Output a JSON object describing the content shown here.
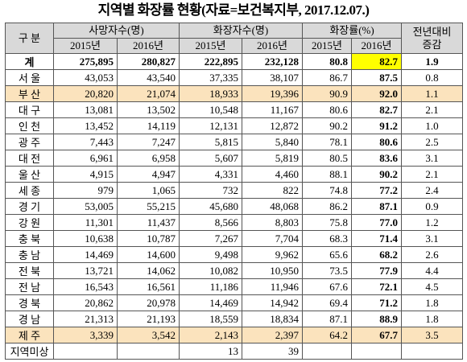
{
  "title": "지역별 화장률 현황(자료=보건복지부, 2017.12.07.)",
  "table": {
    "header": {
      "region": "구 분",
      "groups": [
        "사망자수(명)",
        "화장자수(명)",
        "화장률(%)"
      ],
      "years": [
        "2015년",
        "2016년"
      ],
      "change": [
        "전년대비",
        "증감"
      ]
    },
    "rows": [
      [
        "계",
        "275,895",
        "280,827",
        "222,895",
        "232,128",
        "80.8",
        "82.7",
        "1.9"
      ],
      [
        "서 울",
        "43,053",
        "43,540",
        "37,335",
        "38,107",
        "86.7",
        "87.5",
        "0.8"
      ],
      [
        "부 산",
        "20,820",
        "21,074",
        "18,933",
        "19,396",
        "90.9",
        "92.0",
        "1.1"
      ],
      [
        "대 구",
        "13,081",
        "13,502",
        "10,548",
        "11,167",
        "80.6",
        "82.7",
        "2.1"
      ],
      [
        "인 천",
        "13,452",
        "14,119",
        "12,131",
        "12,872",
        "90.2",
        "91.2",
        "1.0"
      ],
      [
        "광 주",
        "7,443",
        "7,247",
        "5,815",
        "5,840",
        "78.1",
        "80.6",
        "2.5"
      ],
      [
        "대 전",
        "6,961",
        "6,958",
        "5,607",
        "5,819",
        "80.5",
        "83.6",
        "3.1"
      ],
      [
        "울 산",
        "4,915",
        "4,947",
        "4,331",
        "4,460",
        "88.1",
        "90.2",
        "2.1"
      ],
      [
        "세 종",
        "979",
        "1,065",
        "732",
        "822",
        "74.8",
        "77.2",
        "2.4"
      ],
      [
        "경 기",
        "53,005",
        "55,215",
        "45,680",
        "48,068",
        "86.2",
        "87.1",
        "0.9"
      ],
      [
        "강 원",
        "11,301",
        "11,437",
        "8,566",
        "8,803",
        "75.8",
        "77.0",
        "1.2"
      ],
      [
        "충 북",
        "10,638",
        "10,787",
        "7,267",
        "7,704",
        "68.3",
        "71.4",
        "3.1"
      ],
      [
        "충 남",
        "14,469",
        "14,600",
        "9,498",
        "9,962",
        "65.6",
        "68.2",
        "2.6"
      ],
      [
        "전 북",
        "13,721",
        "14,062",
        "10,082",
        "10,950",
        "73.5",
        "77.9",
        "4.4"
      ],
      [
        "전 남",
        "16,543",
        "16,561",
        "11,186",
        "11,946",
        "67.6",
        "72.1",
        "4.5"
      ],
      [
        "경 북",
        "20,862",
        "20,978",
        "14,469",
        "14,942",
        "69.4",
        "71.2",
        "1.8"
      ],
      [
        "경 남",
        "21,313",
        "21,193",
        "18,559",
        "18,834",
        "87.1",
        "88.9",
        "1.8"
      ],
      [
        "제 주",
        "3,339",
        "3,542",
        "2,143",
        "2,397",
        "64.2",
        "67.7",
        "3.5"
      ],
      [
        "지역미상",
        null,
        null,
        "13",
        "39",
        null,
        null,
        null
      ]
    ]
  }
}
